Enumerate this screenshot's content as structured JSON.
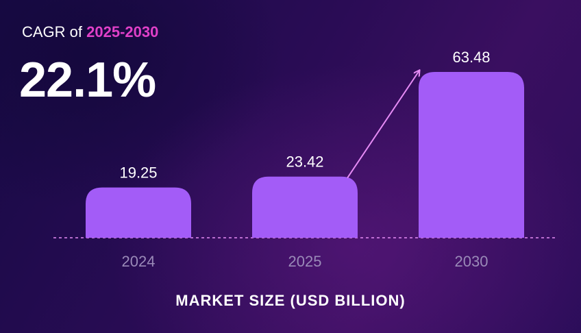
{
  "header": {
    "cagr_prefix": "CAGR of ",
    "cagr_range": "2025-2030",
    "cagr_value": "22.1%"
  },
  "colors": {
    "bar": "#a35cf7",
    "arrow": "#e68cf5",
    "baseline": "#e68cf5",
    "range_text": "#e040c8"
  },
  "chart_data": {
    "type": "bar",
    "title": "CAGR of 2025-2030 22.1%",
    "categories": [
      "2024",
      "2025",
      "2030"
    ],
    "values": [
      19.25,
      23.42,
      63.48
    ],
    "value_labels": [
      "19.25",
      "23.42",
      "63.48"
    ],
    "xlabel": "MARKET SIZE (USD BILLION)",
    "ylabel": "",
    "ylim": [
      0,
      63.48
    ],
    "grid": false,
    "legend": "none",
    "annotations": [
      "arrow from 2025 to 2030"
    ]
  }
}
